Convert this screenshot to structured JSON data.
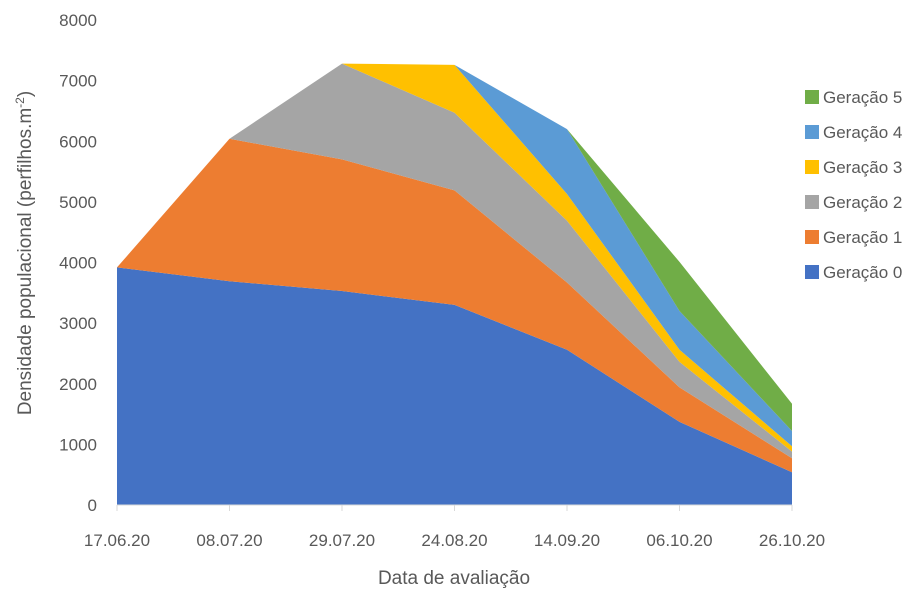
{
  "chart_data": {
    "type": "area",
    "stacked": true,
    "categories": [
      "17.06.20",
      "08.07.20",
      "29.07.20",
      "24.08.20",
      "14.09.20",
      "06.10.20",
      "26.10.20"
    ],
    "xlabel": "Data de avaliação",
    "ylabel_main": "Densidade populacional (perfilhos.m",
    "ylabel_sup": "-2",
    "ylabel_close": ")",
    "ylim": [
      0,
      8000
    ],
    "yticks": [
      "0",
      "1000",
      "2000",
      "3000",
      "4000",
      "5000",
      "6000",
      "7000",
      "8000"
    ],
    "grid": false,
    "legend_position": "right",
    "series": [
      {
        "name": "Geração 0",
        "color": "#4472C4",
        "values": [
          3920,
          3690,
          3530,
          3300,
          2560,
          1370,
          540
        ]
      },
      {
        "name": "Geração 1",
        "color": "#ED7D31",
        "values": [
          0,
          2350,
          2170,
          1890,
          1110,
          570,
          230
        ]
      },
      {
        "name": "Geração 2",
        "color": "#A5A5A5",
        "values": [
          0,
          0,
          1580,
          1280,
          1020,
          420,
          110
        ]
      },
      {
        "name": "Geração 3",
        "color": "#FFC000",
        "values": [
          0,
          0,
          0,
          790,
          440,
          200,
          90
        ]
      },
      {
        "name": "Geração 4",
        "color": "#5B9BD5",
        "values": [
          0,
          0,
          0,
          0,
          1070,
          640,
          250
        ]
      },
      {
        "name": "Geração 5",
        "color": "#70AD47",
        "values": [
          0,
          0,
          0,
          0,
          0,
          810,
          450
        ]
      }
    ]
  }
}
